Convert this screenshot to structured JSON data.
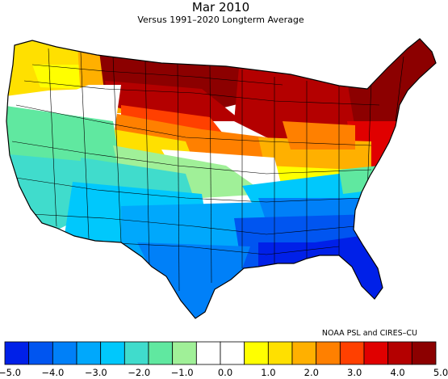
{
  "header": {
    "title": "Mar 2010",
    "subtitle": "Versus 1991–2020 Longterm Average"
  },
  "credit": "NOAA PSL and CIRES–CU",
  "legend": {
    "colors": [
      "#0020e8",
      "#0055f0",
      "#0080f8",
      "#00a8fc",
      "#00c8fc",
      "#40dccc",
      "#60e8a0",
      "#a0f098",
      "#ffffff",
      "#ffffff",
      "#ffff00",
      "#ffe000",
      "#ffb000",
      "#ff8000",
      "#ff4000",
      "#e00000",
      "#b40000",
      "#8c0000"
    ],
    "ticks": [
      "−5.0",
      "−4.0",
      "−3.0",
      "−2.0",
      "−1.0",
      "0.0",
      "1.0",
      "2.0",
      "3.0",
      "4.0",
      "5.0"
    ]
  },
  "map": {
    "outline_color": "#000000",
    "zones": [
      {
        "region": "northwest-coast",
        "color": "#ffe000"
      },
      {
        "region": "idaho-montana-west",
        "color": "#ffb000"
      },
      {
        "region": "northern-plains",
        "color": "#8c0000"
      },
      {
        "region": "great-lakes",
        "color": "#b40000"
      },
      {
        "region": "new-england",
        "color": "#8c0000"
      },
      {
        "region": "mid-atlantic",
        "color": "#e00000"
      },
      {
        "region": "central-plains",
        "color": "#ff8000"
      },
      {
        "region": "ohio-valley",
        "color": "#ffb000"
      },
      {
        "region": "oregon-nevada",
        "color": "#60e8a0"
      },
      {
        "region": "california",
        "color": "#40dccc"
      },
      {
        "region": "southwest",
        "color": "#00c8fc"
      },
      {
        "region": "texas-oklahoma",
        "color": "#00a8fc"
      },
      {
        "region": "gulf-coast",
        "color": "#0055f0"
      },
      {
        "region": "florida",
        "color": "#0020e8"
      },
      {
        "region": "tennessee-carolinas",
        "color": "#00c8fc"
      }
    ]
  }
}
